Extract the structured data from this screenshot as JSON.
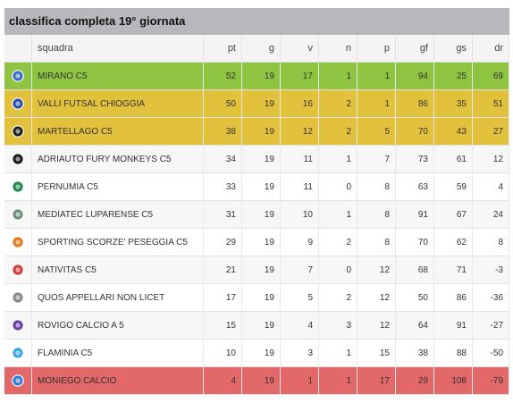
{
  "title": "classifica completa 19° giornata",
  "columns": [
    "squadra",
    "pt",
    "g",
    "v",
    "n",
    "p",
    "gf",
    "gs",
    "dr"
  ],
  "rows": [
    {
      "team": "MIRANO C5",
      "pt": "52",
      "g": "19",
      "v": "17",
      "n": "1",
      "p": "1",
      "gf": "94",
      "gs": "25",
      "dr": "69",
      "zone": "green",
      "logo": "blue-round-crest-icon",
      "logo_color": "#3b6fc6"
    },
    {
      "team": "VALLI FUTSAL CHIOGGIA",
      "pt": "50",
      "g": "19",
      "v": "16",
      "n": "2",
      "p": "1",
      "gf": "86",
      "gs": "35",
      "dr": "51",
      "zone": "yellow",
      "logo": "blue-v-crest-icon",
      "logo_color": "#2b4fa8"
    },
    {
      "team": "MARTELLAGO C5",
      "pt": "38",
      "g": "19",
      "v": "12",
      "n": "2",
      "p": "5",
      "gf": "70",
      "gs": "43",
      "dr": "27",
      "zone": "yellow",
      "logo": "black-gold-crest-icon",
      "logo_color": "#222222"
    },
    {
      "team": "ADRIAUTO FURY MONKEYS C5",
      "pt": "34",
      "g": "19",
      "v": "11",
      "n": "1",
      "p": "7",
      "gf": "73",
      "gs": "61",
      "dr": "12",
      "zone": "",
      "logo": "black-yellow-crest-icon",
      "logo_color": "#1a1a1a"
    },
    {
      "team": "PERNUMIA C5",
      "pt": "33",
      "g": "19",
      "v": "11",
      "n": "0",
      "p": "8",
      "gf": "63",
      "gs": "59",
      "dr": "4",
      "zone": "",
      "logo": "green-black-shield-icon",
      "logo_color": "#1f8a4c"
    },
    {
      "team": "MEDIATEC LUPARENSE C5",
      "pt": "31",
      "g": "19",
      "v": "10",
      "n": "1",
      "p": "8",
      "gf": "91",
      "gs": "67",
      "dr": "24",
      "zone": "",
      "logo": "grey-green-shield-icon",
      "logo_color": "#6a8f7a"
    },
    {
      "team": "SPORTING SCORZE' PESEGGIA C5",
      "pt": "29",
      "g": "19",
      "v": "9",
      "n": "2",
      "p": "8",
      "gf": "70",
      "gs": "62",
      "dr": "8",
      "zone": "",
      "logo": "orange-black-crest-icon",
      "logo_color": "#e07a1f"
    },
    {
      "team": "NATIVITAS C5",
      "pt": "21",
      "g": "19",
      "v": "7",
      "n": "0",
      "p": "12",
      "gf": "68",
      "gs": "71",
      "dr": "-3",
      "zone": "",
      "logo": "red-white-crest-icon",
      "logo_color": "#d23a3a"
    },
    {
      "team": "QUOS APPELLARI NON LICET",
      "pt": "17",
      "g": "19",
      "v": "5",
      "n": "2",
      "p": "12",
      "gf": "50",
      "gs": "86",
      "dr": "-36",
      "zone": "",
      "logo": "grey-oval-crest-icon",
      "logo_color": "#8a8a8a"
    },
    {
      "team": "ROVIGO CALCIO A 5",
      "pt": "15",
      "g": "19",
      "v": "4",
      "n": "3",
      "p": "12",
      "gf": "64",
      "gs": "91",
      "dr": "-27",
      "zone": "",
      "logo": "purple-shield-icon",
      "logo_color": "#6b3fa0"
    },
    {
      "team": "FLAMINIA C5",
      "pt": "10",
      "g": "19",
      "v": "3",
      "n": "1",
      "p": "15",
      "gf": "38",
      "gs": "88",
      "dr": "-50",
      "zone": "",
      "logo": "light-blue-ball-icon",
      "logo_color": "#3aa7e0"
    },
    {
      "team": "MONIEGO CALCIO",
      "pt": "4",
      "g": "19",
      "v": "1",
      "n": "1",
      "p": "17",
      "gf": "29",
      "gs": "108",
      "dr": "-79",
      "zone": "red",
      "logo": "blue-shield-icon",
      "logo_color": "#3a7bd5"
    }
  ]
}
